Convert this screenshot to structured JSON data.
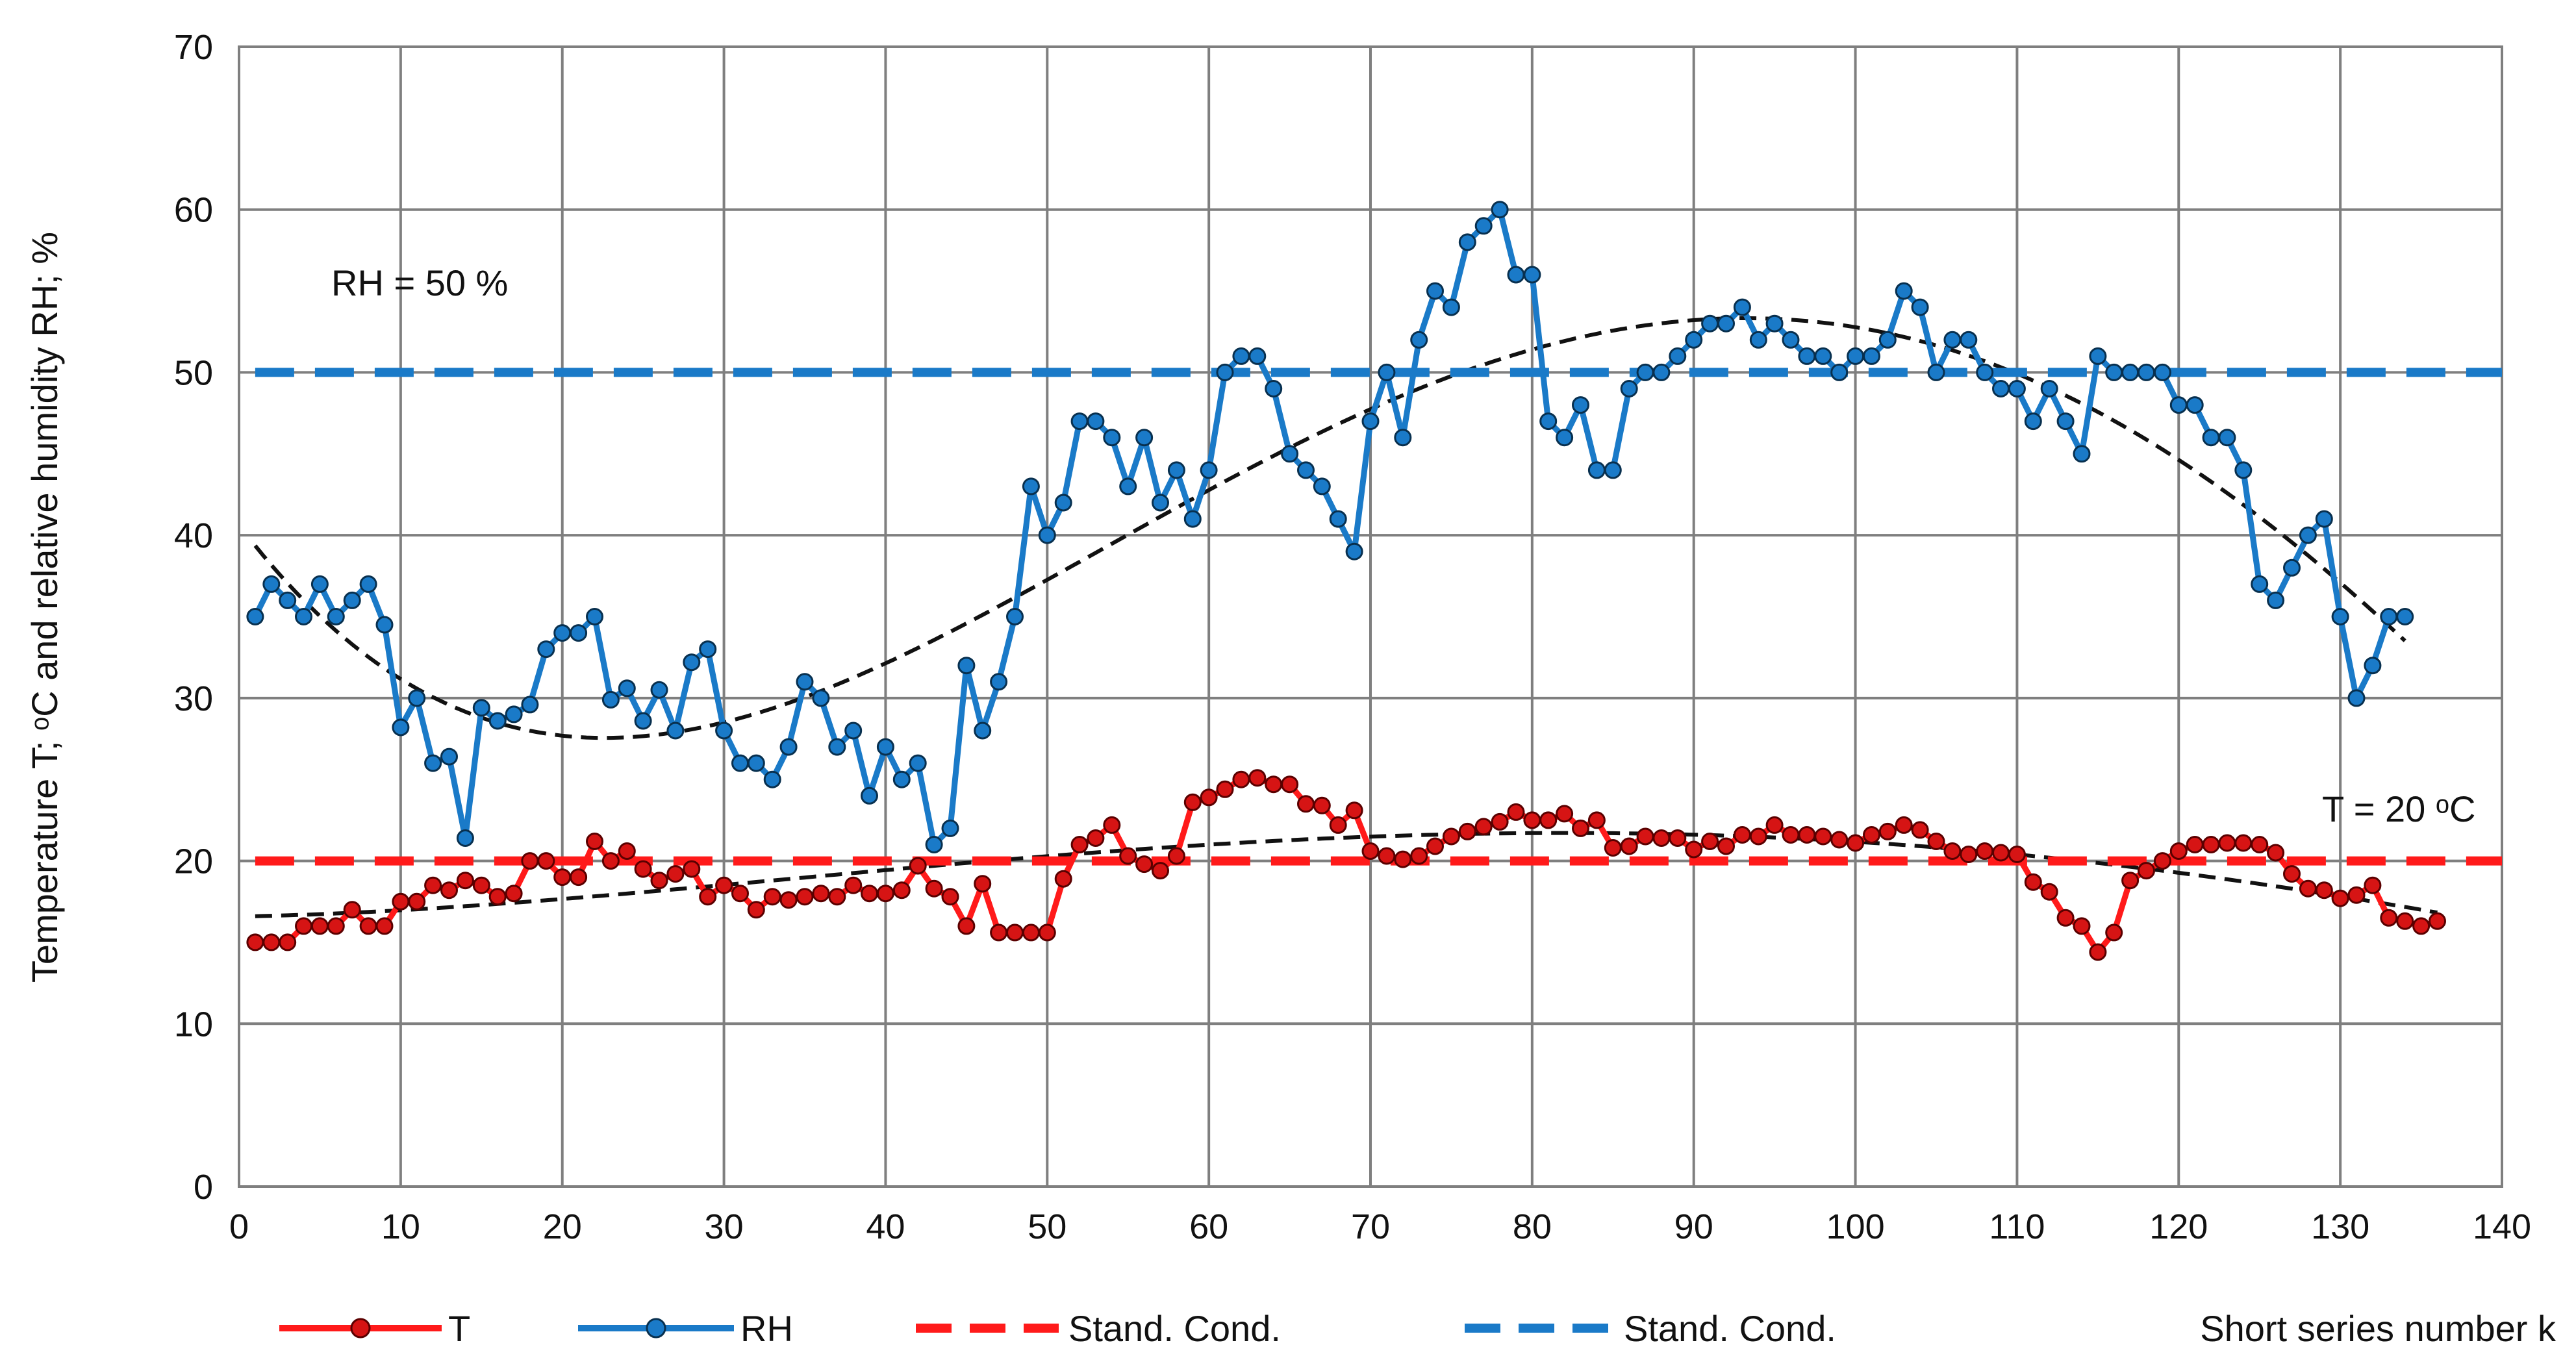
{
  "chart_data": {
    "type": "line",
    "xlabel": "Short series number k",
    "ylabel": "Temperature T; ᵒC  and relative humidity RH; %",
    "xlim": [
      0,
      140
    ],
    "ylim": [
      0,
      70
    ],
    "x_ticks": [
      0,
      10,
      20,
      30,
      40,
      50,
      60,
      70,
      80,
      90,
      100,
      110,
      120,
      130,
      140
    ],
    "y_ticks": [
      0,
      10,
      20,
      30,
      40,
      50,
      60,
      70
    ],
    "x_tick_labels": [
      "0",
      "10",
      "20",
      "30",
      "40",
      "50",
      "60",
      "70",
      "80",
      "90",
      "100",
      "110",
      "120",
      "130",
      "140"
    ],
    "y_tick_labels": [
      "0",
      "10",
      "20",
      "30",
      "40",
      "50",
      "60",
      "70"
    ],
    "grid": true,
    "legend_position": "bottom",
    "annotations": {
      "rh_line": "RH = 50 %",
      "t_line": "T = 20 ᵒC"
    },
    "series": [
      {
        "name": "T",
        "color": "#ff1a1a",
        "marker": "circle",
        "values": [
          15,
          15,
          15,
          16,
          16,
          16,
          17,
          16,
          16,
          17.5,
          17.5,
          18.5,
          18.2,
          18.8,
          18.5,
          17.8,
          18,
          20,
          20,
          19,
          19,
          21.2,
          20,
          20.6,
          19.5,
          18.8,
          19.2,
          19.5,
          17.8,
          18.5,
          18,
          17,
          17.8,
          17.6,
          17.8,
          18,
          17.8,
          18.5,
          18,
          18,
          18.2,
          19.7,
          18.3,
          17.8,
          16,
          18.6,
          15.6,
          15.6,
          15.6,
          15.6,
          18.9,
          21,
          21.4,
          22.2,
          20.3,
          19.8,
          19.4,
          20.3,
          23.6,
          23.9,
          24.4,
          25,
          25.1,
          24.7,
          24.7,
          23.5,
          23.4,
          22.2,
          23.1,
          20.6,
          20.3,
          20.1,
          20.3,
          20.9,
          21.5,
          21.8,
          22.1,
          22.4,
          23,
          22.5,
          22.5,
          22.9,
          22,
          22.5,
          20.8,
          20.9,
          21.5,
          21.4,
          21.4,
          20.7,
          21.2,
          20.9,
          21.6,
          21.5,
          22.2,
          21.6,
          21.6,
          21.5,
          21.3,
          21.1,
          21.6,
          21.8,
          22.2,
          21.9,
          21.2,
          20.6,
          20.4,
          20.6,
          20.5,
          20.4,
          18.7,
          18.1,
          16.5,
          16,
          14.4,
          15.6,
          18.8,
          19.4,
          20,
          20.6,
          21,
          21,
          21.1,
          21.1,
          21,
          20.5,
          19.2,
          18.3,
          18.2,
          17.7,
          17.9,
          18.5,
          16.5,
          16.3,
          16,
          16.3
        ]
      },
      {
        "name": "RH",
        "color": "#1a7ac8",
        "marker": "circle",
        "values": [
          35,
          37,
          36,
          35,
          37,
          35,
          36,
          37,
          34.5,
          28.2,
          30,
          26,
          26.4,
          21.4,
          29.4,
          28.6,
          29,
          29.6,
          33,
          34,
          34,
          35,
          29.9,
          30.6,
          28.6,
          30.5,
          28,
          32.2,
          33,
          28,
          26,
          26,
          25,
          27,
          31,
          30,
          27,
          28,
          24,
          27,
          25,
          26,
          21,
          22,
          32,
          28,
          31,
          35,
          43,
          40,
          42,
          47,
          47,
          46,
          43,
          46,
          42,
          44,
          41,
          44,
          50,
          51,
          51,
          49,
          45,
          44,
          43,
          41,
          39,
          47,
          50,
          46,
          52,
          55,
          54,
          58,
          59,
          60,
          56,
          56,
          47,
          46,
          48,
          44,
          44,
          49,
          50,
          50,
          51,
          52,
          53,
          53,
          54,
          52,
          53,
          52,
          51,
          51,
          50,
          51,
          51,
          52,
          55,
          54,
          50,
          52,
          52,
          50,
          49,
          49,
          47,
          49,
          47,
          45,
          51,
          50,
          50,
          50,
          50,
          48,
          48,
          46,
          46,
          44,
          37,
          36,
          38,
          40,
          41,
          35,
          30,
          32,
          35,
          35
        ]
      },
      {
        "name": "Stand. Cond.",
        "color": "#ff1a1a",
        "style": "dashed",
        "values": [
          20
        ]
      },
      {
        "name": "Stand. Cond.",
        "color": "#1a7ac8",
        "style": "dashed",
        "values": [
          50
        ]
      }
    ]
  }
}
